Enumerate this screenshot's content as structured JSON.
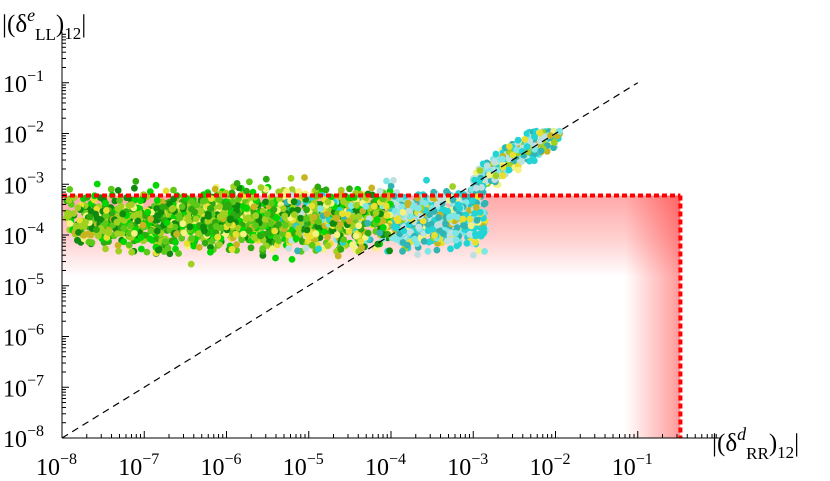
{
  "chart_data": {
    "type": "scatter",
    "x_scale": "log",
    "y_scale": "log",
    "xlim": [
      1e-08,
      1
    ],
    "ylim": [
      1e-08,
      1
    ],
    "xlabel": {
      "pre": "|(δ",
      "sup": "d",
      "sub1": "RR",
      "post": ")",
      "sub2": "12",
      "end": "|"
    },
    "ylabel": {
      "pre": "|(δ",
      "sup": "e",
      "sub1": "LL",
      "post": ")",
      "sub2": "12",
      "end": "|"
    },
    "x_ticks": [
      {
        "base": "10",
        "exp": "−8"
      },
      {
        "base": "10",
        "exp": "−7"
      },
      {
        "base": "10",
        "exp": "−6"
      },
      {
        "base": "10",
        "exp": "−5"
      },
      {
        "base": "10",
        "exp": "−4"
      },
      {
        "base": "10",
        "exp": "−3"
      },
      {
        "base": "10",
        "exp": "−2"
      },
      {
        "base": "10",
        "exp": "−1"
      }
    ],
    "y_ticks": [
      {
        "base": "10",
        "exp": "−8"
      },
      {
        "base": "10",
        "exp": "−7"
      },
      {
        "base": "10",
        "exp": "−6"
      },
      {
        "base": "10",
        "exp": "−5"
      },
      {
        "base": "10",
        "exp": "−4"
      },
      {
        "base": "10",
        "exp": "−3"
      },
      {
        "base": "10",
        "exp": "−2"
      },
      {
        "base": "10",
        "exp": "−1"
      }
    ],
    "x_tick_values": [
      1e-08,
      1e-07,
      1e-06,
      1e-05,
      0.0001,
      0.001,
      0.01,
      0.1
    ],
    "y_tick_values": [
      1e-08,
      1e-07,
      1e-06,
      1e-05,
      0.0001,
      0.001,
      0.01,
      0.1
    ],
    "reference_line": {
      "style": "dashed",
      "color": "#000000",
      "from": [
        1e-08,
        1e-08
      ],
      "to": [
        0.1,
        0.1
      ]
    },
    "bound_region": {
      "color": "#ff0000",
      "x_max": 0.33,
      "y_max": 0.0006,
      "fade_y_to": 1.5e-05,
      "fade_x_from": 0.07
    },
    "scatter": {
      "point_count": 2600,
      "colors": [
        "#0f8a0f",
        "#2eaa10",
        "#5cc818",
        "#00d600",
        "#a0d020",
        "#c8b420",
        "#e8e030",
        "#f6f282",
        "#bfe0e0",
        "#7fe6e6",
        "#22d4d4",
        "#32b4b4"
      ],
      "clusters": [
        {
          "x_range": [
            1e-08,
            0.002
          ],
          "y_range": [
            1e-06,
            0.003
          ]
        },
        {
          "x_range": [
            0.001,
            0.01
          ],
          "y_range": [
            0.0002,
            0.01
          ]
        }
      ]
    }
  }
}
